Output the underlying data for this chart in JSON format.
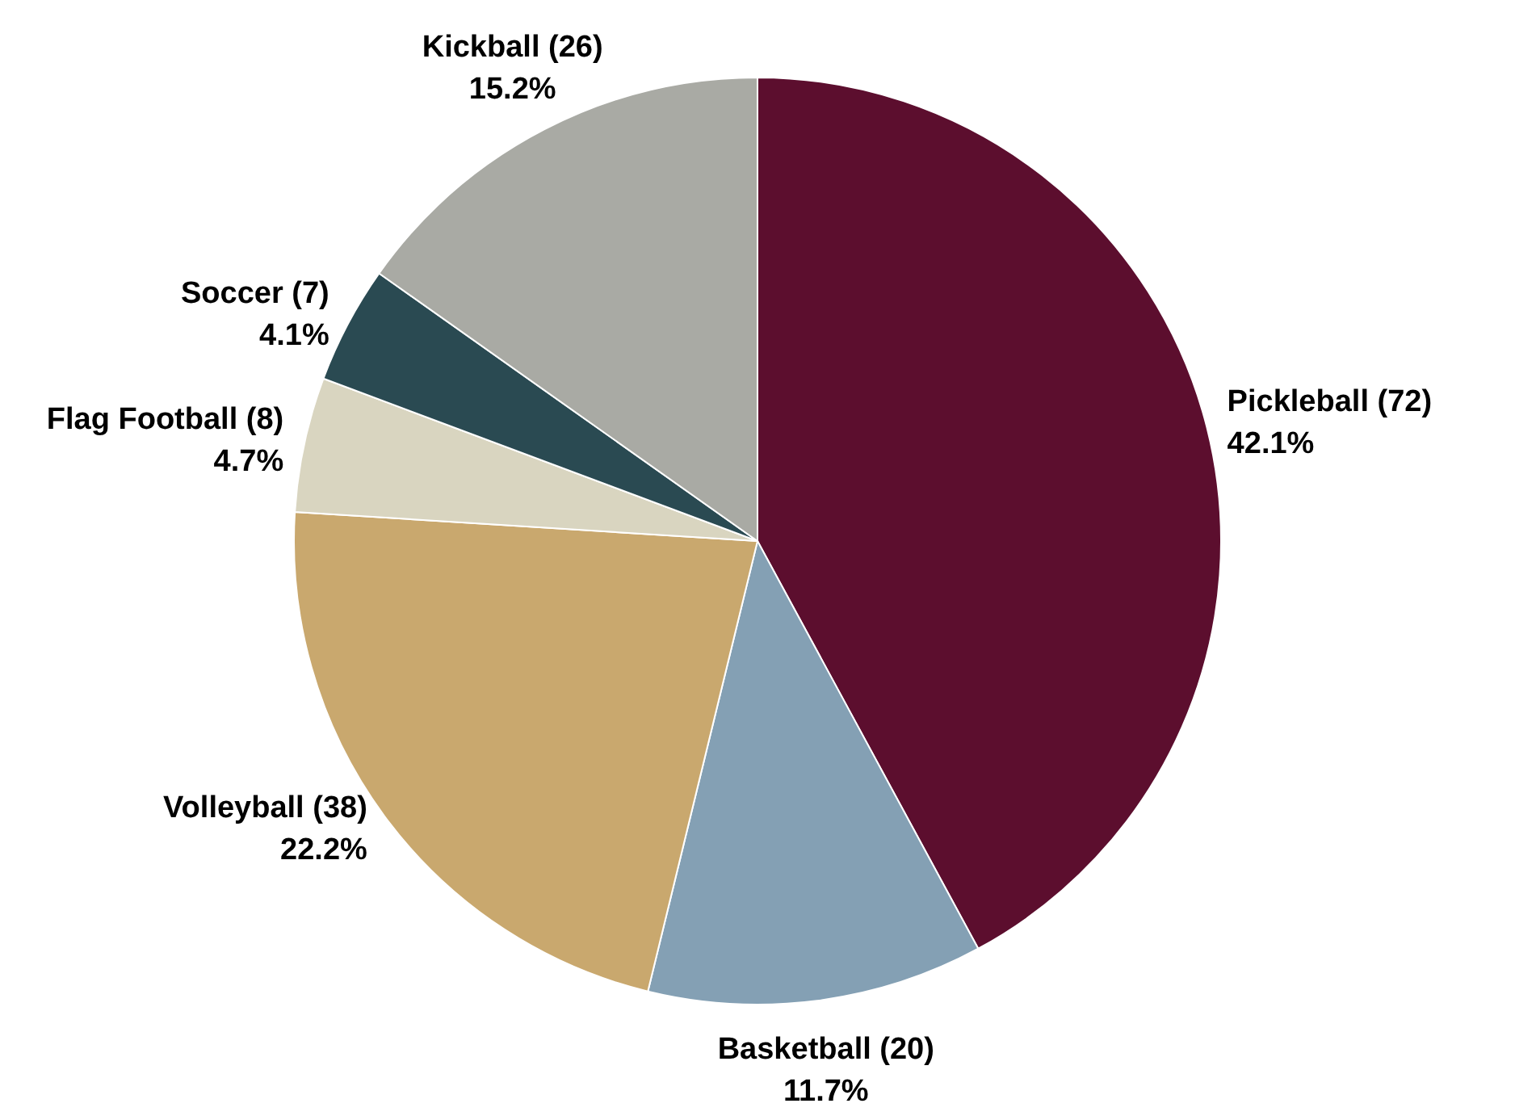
{
  "chart_data": {
    "type": "pie",
    "categories": [
      "Pickleball (72)",
      "Basketball (20)",
      "Volleyball (38)",
      "Flag Football (8)",
      "Soccer (7)",
      "Kickball (26)"
    ],
    "values": [
      42.1,
      11.7,
      22.2,
      4.7,
      4.1,
      15.2
    ],
    "value_labels": [
      "42.1%",
      "11.7%",
      "22.2%",
      "4.7%",
      "4.1%",
      "15.2%"
    ],
    "colors": [
      "#5c0e2e",
      "#84a0b4",
      "#c9a86e",
      "#d9d5c0",
      "#2a4a52",
      "#a9aaa4"
    ]
  }
}
